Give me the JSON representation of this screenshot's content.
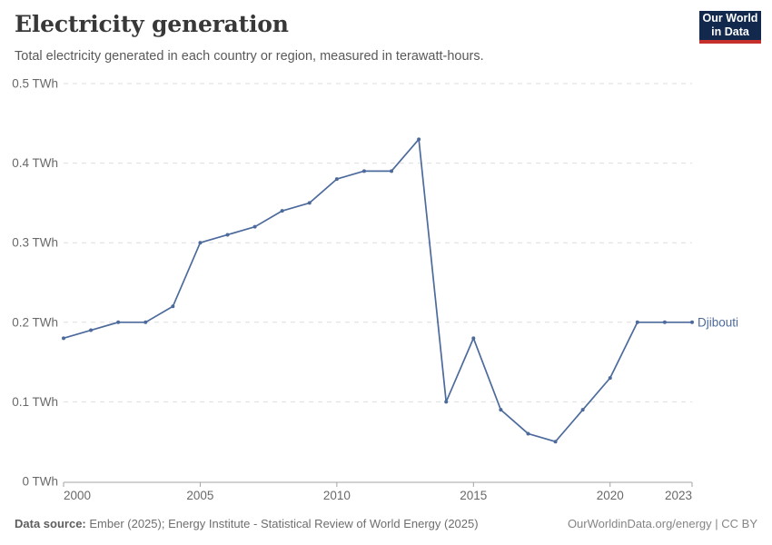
{
  "header": {
    "title": "Electricity generation",
    "subtitle": "Total electricity generated in each country or region, measured in terawatt-hours."
  },
  "logo": {
    "line1": "Our World",
    "line2": "in Data",
    "bg_color": "#12294d",
    "accent_color": "#c5302c"
  },
  "chart_data": {
    "type": "line",
    "title": "Electricity generation",
    "unit": "TWh",
    "x": [
      2000,
      2001,
      2002,
      2003,
      2004,
      2005,
      2006,
      2007,
      2008,
      2009,
      2010,
      2011,
      2012,
      2013,
      2014,
      2015,
      2016,
      2017,
      2018,
      2019,
      2020,
      2021,
      2022,
      2023
    ],
    "series": [
      {
        "name": "Djibouti",
        "color": "#4C6A9C",
        "values": [
          0.18,
          0.19,
          0.2,
          0.2,
          0.22,
          0.3,
          0.31,
          0.32,
          0.34,
          0.35,
          0.38,
          0.39,
          0.39,
          0.43,
          0.1,
          0.18,
          0.09,
          0.06,
          0.05,
          0.09,
          0.13,
          0.2,
          0.2,
          0.2
        ]
      }
    ],
    "xlim": [
      2000,
      2023
    ],
    "ylim": [
      0,
      0.5
    ],
    "xticks": [
      2000,
      2005,
      2010,
      2015,
      2020,
      2023
    ],
    "yticks": [
      {
        "value": 0,
        "label": "0 TWh"
      },
      {
        "value": 0.1,
        "label": "0.1 TWh"
      },
      {
        "value": 0.2,
        "label": "0.2 TWh"
      },
      {
        "value": 0.3,
        "label": "0.3 TWh"
      },
      {
        "value": 0.4,
        "label": "0.4 TWh"
      },
      {
        "value": 0.5,
        "label": "0.5 TWh"
      }
    ],
    "grid": "horizontal-dashed",
    "legend_position": "end-of-line"
  },
  "footer": {
    "source_label": "Data source:",
    "source_text": " Ember (2025); Energy Institute - Statistical Review of World Energy (2025)",
    "right_text": "OurWorldinData.org/energy | CC BY"
  },
  "colors": {
    "gridline": "#dedede",
    "axis_line": "#a3a3a3",
    "tick_label": "#696969"
  }
}
